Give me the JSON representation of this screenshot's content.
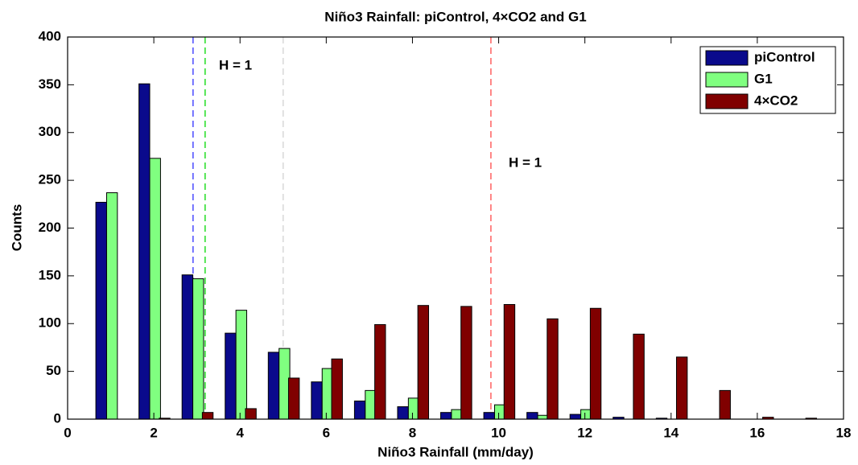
{
  "chart_data": {
    "type": "bar",
    "title": "Niño3 Rainfall: piControl, 4×CO2 and G1",
    "x_label": "Niño3 Rainfall (mm/day)",
    "y_label": "Counts",
    "x": [
      1,
      2,
      3,
      4,
      5,
      6,
      7,
      8,
      9,
      10,
      11,
      12,
      13,
      14,
      15,
      16,
      17
    ],
    "series": [
      {
        "name": "piControl",
        "color": "#0a0a8c",
        "values": [
          227,
          351,
          151,
          90,
          70,
          39,
          19,
          13,
          7,
          7,
          7,
          5,
          2,
          1,
          0,
          0,
          0
        ]
      },
      {
        "name": "G1",
        "color": "#80ff80",
        "values": [
          237,
          273,
          147,
          114,
          74,
          53,
          30,
          22,
          10,
          15,
          4,
          10,
          0,
          0,
          0,
          0,
          0
        ]
      },
      {
        "name": "4×CO2",
        "color": "#800000",
        "values": [
          0,
          1,
          7,
          11,
          43,
          63,
          99,
          119,
          118,
          120,
          105,
          116,
          89,
          65,
          30,
          2,
          1
        ]
      }
    ],
    "reference_lines": [
      {
        "x": 2.91,
        "color": "#4a4aff"
      },
      {
        "x": 3.19,
        "color": "#22dd22"
      },
      {
        "x": 5.0,
        "color": "#d8d8d8"
      },
      {
        "x": 9.82,
        "color": "#ff6060"
      }
    ],
    "annotations": [
      "H = 1",
      "H = 1"
    ],
    "xlim": [
      0,
      18
    ],
    "xticks": [
      0,
      2,
      4,
      6,
      8,
      10,
      12,
      14,
      16,
      18
    ],
    "ylim": [
      0,
      400
    ],
    "yticks": [
      0,
      50,
      100,
      150,
      200,
      250,
      300,
      350,
      400
    ],
    "legend": "northeast"
  }
}
